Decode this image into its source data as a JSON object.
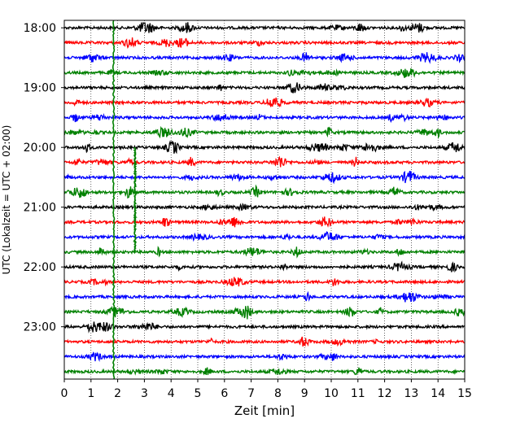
{
  "chart_data": {
    "type": "line",
    "title": "",
    "xlabel": "Zeit  [min]",
    "ylabel": "UTC (Lokalzeit = UTC + 02:00)",
    "xlim": [
      0,
      15
    ],
    "x_ticks": [
      0,
      1,
      2,
      3,
      4,
      5,
      6,
      7,
      8,
      9,
      10,
      11,
      12,
      13,
      14,
      15
    ],
    "y_time_range": [
      "17:52:30",
      "23:52:30"
    ],
    "y_ticks": [
      "18:00",
      "19:00",
      "20:00",
      "21:00",
      "22:00",
      "23:00"
    ],
    "grid": "vertical dotted lines at every minute",
    "legend": "none",
    "trace_interval_minutes": 15,
    "trace_colors_cycle": [
      "#000000",
      "#ff0000",
      "#0000ff",
      "#008000"
    ],
    "traces": [
      {
        "start": "18:00",
        "color": "#000000"
      },
      {
        "start": "18:15",
        "color": "#ff0000"
      },
      {
        "start": "18:30",
        "color": "#0000ff"
      },
      {
        "start": "18:45",
        "color": "#008000"
      },
      {
        "start": "19:00",
        "color": "#000000"
      },
      {
        "start": "19:15",
        "color": "#ff0000"
      },
      {
        "start": "19:30",
        "color": "#0000ff"
      },
      {
        "start": "19:45",
        "color": "#008000"
      },
      {
        "start": "20:00",
        "color": "#000000"
      },
      {
        "start": "20:15",
        "color": "#ff0000"
      },
      {
        "start": "20:30",
        "color": "#0000ff"
      },
      {
        "start": "20:45",
        "color": "#008000"
      },
      {
        "start": "21:00",
        "color": "#000000"
      },
      {
        "start": "21:15",
        "color": "#ff0000"
      },
      {
        "start": "21:30",
        "color": "#0000ff"
      },
      {
        "start": "21:45",
        "color": "#008000"
      },
      {
        "start": "22:00",
        "color": "#000000"
      },
      {
        "start": "22:15",
        "color": "#ff0000"
      },
      {
        "start": "22:30",
        "color": "#0000ff"
      },
      {
        "start": "22:45",
        "color": "#008000"
      },
      {
        "start": "23:00",
        "color": "#000000"
      },
      {
        "start": "23:15",
        "color": "#ff0000"
      },
      {
        "start": "23:30",
        "color": "#0000ff"
      },
      {
        "start": "23:45",
        "color": "#008000"
      }
    ],
    "event_markers": [
      {
        "x_min": 1.85,
        "color": "#008000",
        "start": "17:52:30",
        "end": "23:52:30"
      },
      {
        "x_min": 2.65,
        "color": "#008000",
        "start": "20:00",
        "end": "21:45"
      }
    ]
  }
}
